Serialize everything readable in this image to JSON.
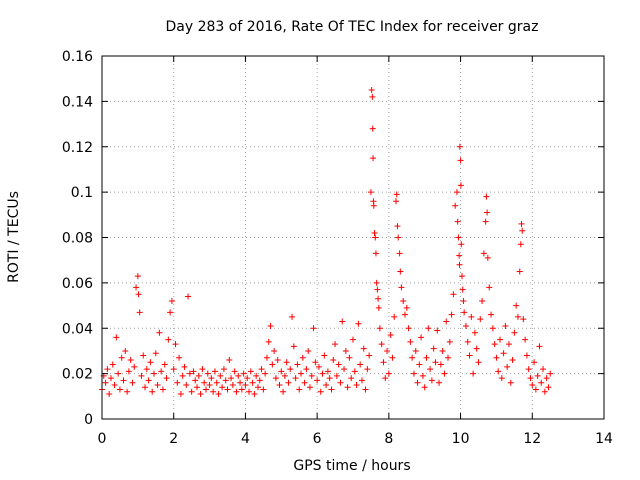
{
  "chart_data": {
    "type": "scatter",
    "title": "Day 283 of 2016, Rate Of TEC Index for receiver graz",
    "xlabel": "GPS time / hours",
    "ylabel": "ROTI / TECUs",
    "xlim": [
      0,
      14
    ],
    "ylim": [
      0,
      0.16
    ],
    "x_ticks": [
      0,
      2,
      4,
      6,
      8,
      10,
      12,
      14
    ],
    "x_tick_labels": [
      "0",
      "2",
      "4",
      "6",
      "8",
      "10",
      "12",
      "14"
    ],
    "y_ticks": [
      0,
      0.02,
      0.04,
      0.06,
      0.08,
      0.1,
      0.12,
      0.14,
      0.16
    ],
    "y_tick_labels": [
      "0",
      "0.02",
      "0.04",
      "0.06",
      "0.08",
      "0.1",
      "0.12",
      "0.14",
      "0.16"
    ],
    "grid": true,
    "marker": "+",
    "series": [
      {
        "name": "ROTI",
        "color": "#ff0000",
        "points": [
          [
            0.0,
            0.013
          ],
          [
            0.05,
            0.019
          ],
          [
            0.1,
            0.016
          ],
          [
            0.15,
            0.022
          ],
          [
            0.2,
            0.011
          ],
          [
            0.25,
            0.018
          ],
          [
            0.3,
            0.024
          ],
          [
            0.35,
            0.015
          ],
          [
            0.4,
            0.036
          ],
          [
            0.45,
            0.02
          ],
          [
            0.5,
            0.013
          ],
          [
            0.55,
            0.027
          ],
          [
            0.6,
            0.017
          ],
          [
            0.65,
            0.03
          ],
          [
            0.7,
            0.012
          ],
          [
            0.75,
            0.021
          ],
          [
            0.8,
            0.026
          ],
          [
            0.85,
            0.016
          ],
          [
            0.9,
            0.023
          ],
          [
            0.95,
            0.058
          ],
          [
            1.0,
            0.063
          ],
          [
            1.02,
            0.055
          ],
          [
            1.05,
            0.047
          ],
          [
            1.1,
            0.019
          ],
          [
            1.15,
            0.028
          ],
          [
            1.2,
            0.014
          ],
          [
            1.25,
            0.022
          ],
          [
            1.3,
            0.017
          ],
          [
            1.35,
            0.025
          ],
          [
            1.4,
            0.012
          ],
          [
            1.45,
            0.02
          ],
          [
            1.5,
            0.029
          ],
          [
            1.55,
            0.015
          ],
          [
            1.6,
            0.038
          ],
          [
            1.65,
            0.021
          ],
          [
            1.7,
            0.013
          ],
          [
            1.75,
            0.024
          ],
          [
            1.8,
            0.018
          ],
          [
            1.85,
            0.035
          ],
          [
            1.9,
            0.047
          ],
          [
            1.95,
            0.052
          ],
          [
            2.0,
            0.022
          ],
          [
            2.05,
            0.033
          ],
          [
            2.1,
            0.016
          ],
          [
            2.15,
            0.027
          ],
          [
            2.2,
            0.011
          ],
          [
            2.25,
            0.019
          ],
          [
            2.3,
            0.023
          ],
          [
            2.35,
            0.015
          ],
          [
            2.4,
            0.054
          ],
          [
            2.45,
            0.02
          ],
          [
            2.5,
            0.012
          ],
          [
            2.55,
            0.021
          ],
          [
            2.6,
            0.017
          ],
          [
            2.65,
            0.014
          ],
          [
            2.7,
            0.019
          ],
          [
            2.75,
            0.011
          ],
          [
            2.8,
            0.022
          ],
          [
            2.85,
            0.016
          ],
          [
            2.9,
            0.013
          ],
          [
            2.95,
            0.02
          ],
          [
            3.0,
            0.015
          ],
          [
            3.05,
            0.018
          ],
          [
            3.1,
            0.012
          ],
          [
            3.15,
            0.021
          ],
          [
            3.2,
            0.016
          ],
          [
            3.25,
            0.011
          ],
          [
            3.3,
            0.019
          ],
          [
            3.35,
            0.014
          ],
          [
            3.4,
            0.022
          ],
          [
            3.45,
            0.017
          ],
          [
            3.5,
            0.013
          ],
          [
            3.55,
            0.026
          ],
          [
            3.6,
            0.018
          ],
          [
            3.65,
            0.015
          ],
          [
            3.7,
            0.021
          ],
          [
            3.75,
            0.012
          ],
          [
            3.8,
            0.019
          ],
          [
            3.85,
            0.016
          ],
          [
            3.9,
            0.013
          ],
          [
            3.95,
            0.02
          ],
          [
            4.0,
            0.015
          ],
          [
            4.05,
            0.018
          ],
          [
            4.1,
            0.012
          ],
          [
            4.15,
            0.021
          ],
          [
            4.2,
            0.016
          ],
          [
            4.25,
            0.011
          ],
          [
            4.3,
            0.019
          ],
          [
            4.35,
            0.014
          ],
          [
            4.4,
            0.017
          ],
          [
            4.45,
            0.022
          ],
          [
            4.5,
            0.013
          ],
          [
            4.55,
            0.02
          ],
          [
            4.6,
            0.027
          ],
          [
            4.65,
            0.034
          ],
          [
            4.7,
            0.041
          ],
          [
            4.75,
            0.024
          ],
          [
            4.8,
            0.03
          ],
          [
            4.85,
            0.018
          ],
          [
            4.9,
            0.026
          ],
          [
            4.95,
            0.015
          ],
          [
            5.0,
            0.021
          ],
          [
            5.05,
            0.012
          ],
          [
            5.1,
            0.019
          ],
          [
            5.15,
            0.025
          ],
          [
            5.2,
            0.016
          ],
          [
            5.25,
            0.022
          ],
          [
            5.3,
            0.045
          ],
          [
            5.35,
            0.032
          ],
          [
            5.4,
            0.018
          ],
          [
            5.45,
            0.024
          ],
          [
            5.5,
            0.013
          ],
          [
            5.55,
            0.02
          ],
          [
            5.6,
            0.027
          ],
          [
            5.65,
            0.016
          ],
          [
            5.7,
            0.022
          ],
          [
            5.75,
            0.03
          ],
          [
            5.8,
            0.014
          ],
          [
            5.85,
            0.019
          ],
          [
            5.9,
            0.04
          ],
          [
            5.95,
            0.025
          ],
          [
            6.0,
            0.017
          ],
          [
            6.05,
            0.023
          ],
          [
            6.1,
            0.012
          ],
          [
            6.15,
            0.02
          ],
          [
            6.2,
            0.028
          ],
          [
            6.25,
            0.015
          ],
          [
            6.3,
            0.021
          ],
          [
            6.35,
            0.018
          ],
          [
            6.4,
            0.013
          ],
          [
            6.45,
            0.026
          ],
          [
            6.5,
            0.033
          ],
          [
            6.55,
            0.019
          ],
          [
            6.6,
            0.024
          ],
          [
            6.65,
            0.016
          ],
          [
            6.7,
            0.043
          ],
          [
            6.75,
            0.022
          ],
          [
            6.8,
            0.03
          ],
          [
            6.85,
            0.014
          ],
          [
            6.9,
            0.027
          ],
          [
            6.95,
            0.018
          ],
          [
            7.0,
            0.035
          ],
          [
            7.05,
            0.021
          ],
          [
            7.1,
            0.015
          ],
          [
            7.15,
            0.042
          ],
          [
            7.2,
            0.024
          ],
          [
            7.25,
            0.017
          ],
          [
            7.3,
            0.031
          ],
          [
            7.35,
            0.013
          ],
          [
            7.4,
            0.022
          ],
          [
            7.45,
            0.028
          ],
          [
            7.5,
            0.1
          ],
          [
            7.52,
            0.145
          ],
          [
            7.54,
            0.142
          ],
          [
            7.55,
            0.128
          ],
          [
            7.56,
            0.115
          ],
          [
            7.57,
            0.096
          ],
          [
            7.58,
            0.094
          ],
          [
            7.6,
            0.082
          ],
          [
            7.62,
            0.08
          ],
          [
            7.64,
            0.073
          ],
          [
            7.66,
            0.06
          ],
          [
            7.68,
            0.057
          ],
          [
            7.7,
            0.053
          ],
          [
            7.72,
            0.049
          ],
          [
            7.75,
            0.04
          ],
          [
            7.8,
            0.033
          ],
          [
            7.85,
            0.025
          ],
          [
            7.9,
            0.018
          ],
          [
            7.95,
            0.03
          ],
          [
            8.0,
            0.02
          ],
          [
            8.05,
            0.037
          ],
          [
            8.1,
            0.027
          ],
          [
            8.15,
            0.045
          ],
          [
            8.2,
            0.096
          ],
          [
            8.22,
            0.099
          ],
          [
            8.24,
            0.085
          ],
          [
            8.26,
            0.08
          ],
          [
            8.3,
            0.073
          ],
          [
            8.32,
            0.065
          ],
          [
            8.35,
            0.058
          ],
          [
            8.4,
            0.052
          ],
          [
            8.45,
            0.046
          ],
          [
            8.5,
            0.049
          ],
          [
            8.55,
            0.04
          ],
          [
            8.6,
            0.034
          ],
          [
            8.65,
            0.027
          ],
          [
            8.7,
            0.02
          ],
          [
            8.75,
            0.03
          ],
          [
            8.8,
            0.016
          ],
          [
            8.85,
            0.024
          ],
          [
            8.9,
            0.036
          ],
          [
            8.95,
            0.019
          ],
          [
            9.0,
            0.014
          ],
          [
            9.05,
            0.027
          ],
          [
            9.1,
            0.04
          ],
          [
            9.15,
            0.022
          ],
          [
            9.2,
            0.017
          ],
          [
            9.25,
            0.031
          ],
          [
            9.3,
            0.025
          ],
          [
            9.35,
            0.039
          ],
          [
            9.4,
            0.016
          ],
          [
            9.45,
            0.024
          ],
          [
            9.5,
            0.03
          ],
          [
            9.55,
            0.02
          ],
          [
            9.6,
            0.043
          ],
          [
            9.65,
            0.027
          ],
          [
            9.7,
            0.034
          ],
          [
            9.75,
            0.046
          ],
          [
            9.8,
            0.055
          ],
          [
            9.85,
            0.094
          ],
          [
            9.9,
            0.1
          ],
          [
            9.92,
            0.087
          ],
          [
            9.94,
            0.08
          ],
          [
            9.96,
            0.072
          ],
          [
            9.97,
            0.068
          ],
          [
            9.98,
            0.12
          ],
          [
            10.0,
            0.114
          ],
          [
            10.01,
            0.103
          ],
          [
            10.02,
            0.077
          ],
          [
            10.04,
            0.063
          ],
          [
            10.06,
            0.057
          ],
          [
            10.08,
            0.052
          ],
          [
            10.1,
            0.047
          ],
          [
            10.15,
            0.041
          ],
          [
            10.2,
            0.034
          ],
          [
            10.25,
            0.028
          ],
          [
            10.3,
            0.045
          ],
          [
            10.35,
            0.02
          ],
          [
            10.4,
            0.038
          ],
          [
            10.45,
            0.031
          ],
          [
            10.5,
            0.025
          ],
          [
            10.55,
            0.044
          ],
          [
            10.6,
            0.052
          ],
          [
            10.65,
            0.073
          ],
          [
            10.7,
            0.087
          ],
          [
            10.72,
            0.098
          ],
          [
            10.74,
            0.091
          ],
          [
            10.76,
            0.071
          ],
          [
            10.8,
            0.058
          ],
          [
            10.85,
            0.046
          ],
          [
            10.9,
            0.04
          ],
          [
            10.95,
            0.033
          ],
          [
            11.0,
            0.027
          ],
          [
            11.05,
            0.021
          ],
          [
            11.1,
            0.035
          ],
          [
            11.15,
            0.018
          ],
          [
            11.2,
            0.029
          ],
          [
            11.25,
            0.041
          ],
          [
            11.3,
            0.023
          ],
          [
            11.35,
            0.033
          ],
          [
            11.4,
            0.016
          ],
          [
            11.45,
            0.026
          ],
          [
            11.5,
            0.038
          ],
          [
            11.55,
            0.05
          ],
          [
            11.6,
            0.045
          ],
          [
            11.65,
            0.065
          ],
          [
            11.68,
            0.077
          ],
          [
            11.7,
            0.086
          ],
          [
            11.72,
            0.083
          ],
          [
            11.75,
            0.044
          ],
          [
            11.8,
            0.035
          ],
          [
            11.85,
            0.028
          ],
          [
            11.9,
            0.022
          ],
          [
            11.95,
            0.018
          ],
          [
            12.0,
            0.015
          ],
          [
            12.05,
            0.025
          ],
          [
            12.1,
            0.013
          ],
          [
            12.15,
            0.019
          ],
          [
            12.2,
            0.032
          ],
          [
            12.25,
            0.016
          ],
          [
            12.3,
            0.022
          ],
          [
            12.35,
            0.012
          ],
          [
            12.4,
            0.018
          ],
          [
            12.45,
            0.014
          ],
          [
            12.5,
            0.02
          ]
        ]
      }
    ]
  }
}
